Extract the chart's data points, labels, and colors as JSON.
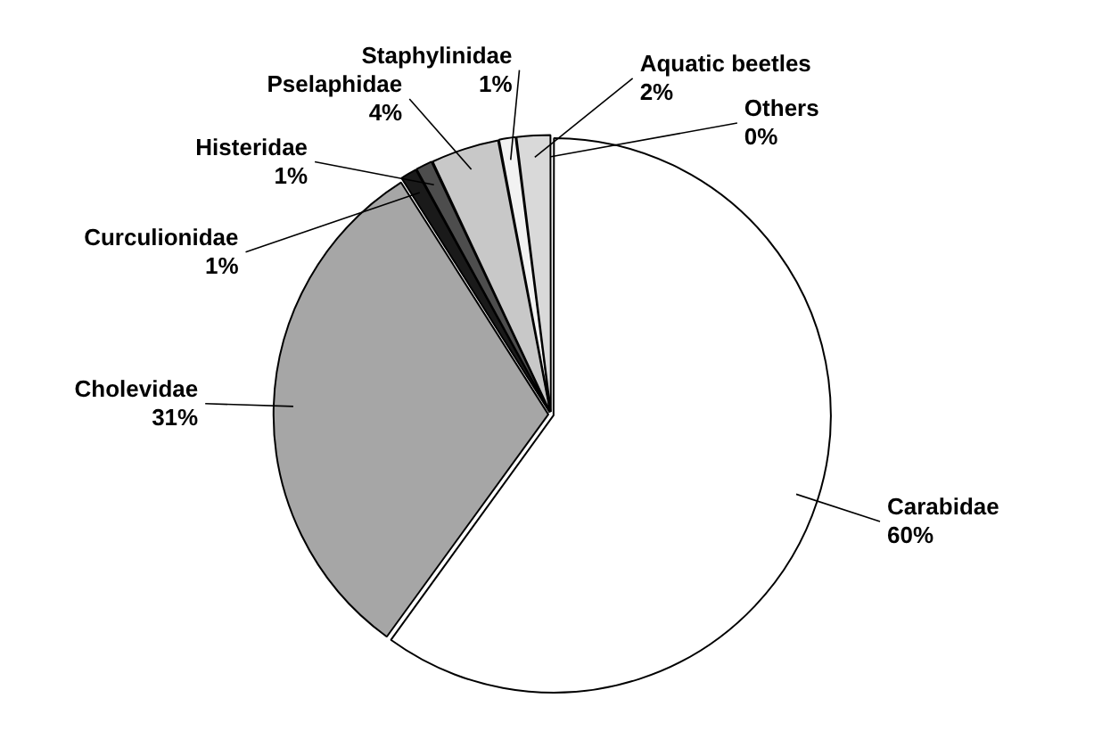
{
  "chart_data": {
    "type": "pie",
    "categories": [
      "Carabidae",
      "Cholevidae",
      "Curculionidae",
      "Histeridae",
      "Pselaphidae",
      "Staphylinidae",
      "Aquatic beetles",
      "Others"
    ],
    "values": [
      60,
      31,
      1,
      1,
      4,
      1,
      2,
      0
    ],
    "value_labels": [
      "60%",
      "31%",
      "1%",
      "1%",
      "4%",
      "1%",
      "2%",
      "0%"
    ],
    "colors": [
      "#ffffff",
      "#a6a6a6",
      "#1a1a1a",
      "#4d4d4d",
      "#c8c8c8",
      "#f2f2f2",
      "#d9d9d9",
      "#8c8c8c"
    ],
    "legend": false
  }
}
